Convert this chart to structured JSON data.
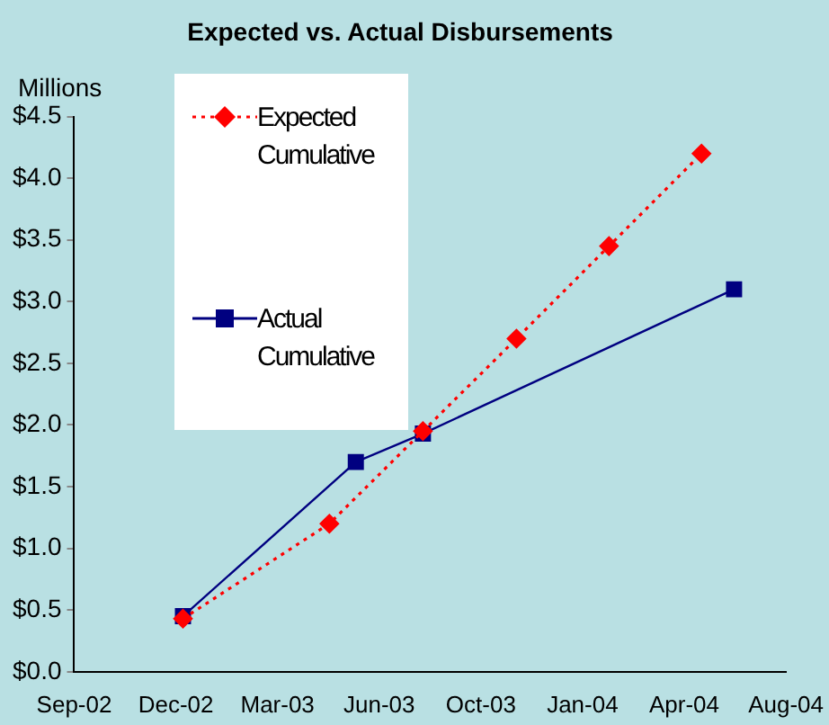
{
  "chart_data": {
    "type": "line",
    "title": "Expected vs. Actual Disbursements",
    "ylabel": "Millions",
    "xlim": [
      "2002-09-01",
      "2004-08-01"
    ],
    "xticks": [
      {
        "value": "2002-09-01",
        "label": "Sep-02"
      },
      {
        "value": "2002-12-10",
        "label": "Dec-02"
      },
      {
        "value": "2003-03-20",
        "label": "Mar-03"
      },
      {
        "value": "2003-06-28",
        "label": "Jun-03"
      },
      {
        "value": "2003-10-06",
        "label": "Oct-03"
      },
      {
        "value": "2004-01-14",
        "label": "Jan-04"
      },
      {
        "value": "2004-04-23",
        "label": "Apr-04"
      },
      {
        "value": "2004-08-01",
        "label": "Aug-04"
      }
    ],
    "ylim": [
      0,
      4.5
    ],
    "yticks": [
      {
        "value": 0,
        "label": "$0.0"
      },
      {
        "value": 0.5,
        "label": "$0.5"
      },
      {
        "value": 1,
        "label": "$1.0"
      },
      {
        "value": 1.5,
        "label": "$1.5"
      },
      {
        "value": 2,
        "label": "$2.0"
      },
      {
        "value": 2.5,
        "label": "$2.5"
      },
      {
        "value": 3,
        "label": "$3.0"
      },
      {
        "value": 3.5,
        "label": "$3.5"
      },
      {
        "value": 4,
        "label": "$4.0"
      },
      {
        "value": 4.5,
        "label": "$4.5"
      }
    ],
    "grid": false,
    "legend": "top left",
    "series": [
      {
        "name": "Expected Cumulative",
        "color": "#ff0000",
        "marker": "diamond",
        "line_style": "dotted",
        "x": [
          "2002-12-17",
          "2003-05-10",
          "2003-08-10",
          "2003-11-10",
          "2004-02-09",
          "2004-05-10"
        ],
        "values": [
          0.43,
          1.2,
          1.95,
          2.7,
          3.45,
          4.2
        ]
      },
      {
        "name": "Actual Cumulative",
        "color": "#000080",
        "marker": "square",
        "line_style": "solid",
        "x": [
          "2002-12-17",
          "2003-06-05",
          "2003-08-10",
          "2004-06-11"
        ],
        "values": [
          0.45,
          1.7,
          1.93,
          3.1
        ]
      }
    ]
  }
}
